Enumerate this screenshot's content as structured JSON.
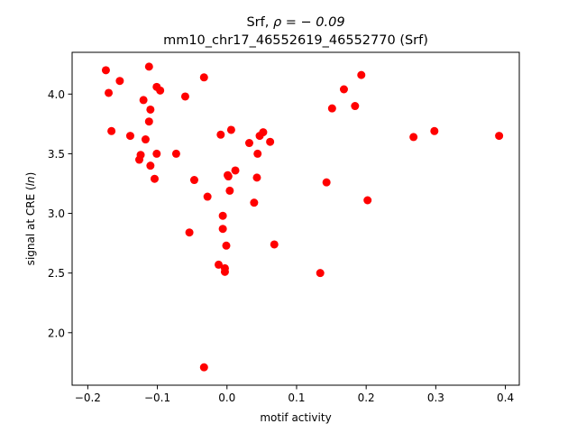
{
  "chart_data": {
    "type": "scatter",
    "title_main": "Srf, ",
    "title_rho": "ρ = − 0.09",
    "subtitle": "mm10_chr17_46552619_46552770 (Srf)",
    "xlabel": "motif activity",
    "ylabel_prefix": "signal at CRE (",
    "ylabel_italic": "ln",
    "ylabel_suffix": ")",
    "xlim": [
      -0.2225,
      0.42
    ],
    "ylim": [
      1.56,
      4.35
    ],
    "x_ticks": [
      -0.2,
      -0.1,
      0.0,
      0.1,
      0.2,
      0.3,
      0.4
    ],
    "x_tick_labels": [
      "−0.2",
      "−0.1",
      "0.0",
      "0.1",
      "0.2",
      "0.3",
      "0.4"
    ],
    "y_ticks": [
      2.0,
      2.5,
      3.0,
      3.5,
      4.0
    ],
    "y_tick_labels": [
      "2.0",
      "2.5",
      "3.0",
      "3.5",
      "4.0"
    ],
    "grid": false,
    "marker_color": "#ff0000",
    "points": [
      {
        "x": -0.174,
        "y": 4.2
      },
      {
        "x": -0.17,
        "y": 4.01
      },
      {
        "x": -0.166,
        "y": 3.69
      },
      {
        "x": -0.154,
        "y": 4.11
      },
      {
        "x": -0.139,
        "y": 3.65
      },
      {
        "x": -0.126,
        "y": 3.45
      },
      {
        "x": -0.124,
        "y": 3.49
      },
      {
        "x": -0.12,
        "y": 3.95
      },
      {
        "x": -0.117,
        "y": 3.62
      },
      {
        "x": -0.112,
        "y": 4.23
      },
      {
        "x": -0.112,
        "y": 3.77
      },
      {
        "x": -0.11,
        "y": 3.87
      },
      {
        "x": -0.11,
        "y": 3.4
      },
      {
        "x": -0.104,
        "y": 3.29
      },
      {
        "x": -0.101,
        "y": 4.06
      },
      {
        "x": -0.101,
        "y": 3.5
      },
      {
        "x": -0.096,
        "y": 4.03
      },
      {
        "x": -0.073,
        "y": 3.5
      },
      {
        "x": -0.06,
        "y": 3.98
      },
      {
        "x": -0.054,
        "y": 2.84
      },
      {
        "x": -0.047,
        "y": 3.28
      },
      {
        "x": -0.033,
        "y": 4.14
      },
      {
        "x": -0.033,
        "y": 1.71
      },
      {
        "x": -0.028,
        "y": 3.14
      },
      {
        "x": -0.012,
        "y": 2.57
      },
      {
        "x": -0.009,
        "y": 3.66
      },
      {
        "x": -0.006,
        "y": 2.98
      },
      {
        "x": -0.006,
        "y": 2.87
      },
      {
        "x": -0.003,
        "y": 2.54
      },
      {
        "x": -0.003,
        "y": 2.51
      },
      {
        "x": -0.001,
        "y": 2.73
      },
      {
        "x": 0.001,
        "y": 3.32
      },
      {
        "x": 0.002,
        "y": 3.31
      },
      {
        "x": 0.004,
        "y": 3.19
      },
      {
        "x": 0.006,
        "y": 3.7
      },
      {
        "x": 0.012,
        "y": 3.36
      },
      {
        "x": 0.032,
        "y": 3.59
      },
      {
        "x": 0.039,
        "y": 3.09
      },
      {
        "x": 0.043,
        "y": 3.3
      },
      {
        "x": 0.044,
        "y": 3.5
      },
      {
        "x": 0.047,
        "y": 3.65
      },
      {
        "x": 0.052,
        "y": 3.68
      },
      {
        "x": 0.062,
        "y": 3.6
      },
      {
        "x": 0.068,
        "y": 2.74
      },
      {
        "x": 0.134,
        "y": 2.5
      },
      {
        "x": 0.143,
        "y": 3.26
      },
      {
        "x": 0.151,
        "y": 3.88
      },
      {
        "x": 0.168,
        "y": 4.04
      },
      {
        "x": 0.184,
        "y": 3.9
      },
      {
        "x": 0.193,
        "y": 4.16
      },
      {
        "x": 0.202,
        "y": 3.11
      },
      {
        "x": 0.268,
        "y": 3.64
      },
      {
        "x": 0.298,
        "y": 3.69
      },
      {
        "x": 0.391,
        "y": 3.65
      }
    ]
  }
}
